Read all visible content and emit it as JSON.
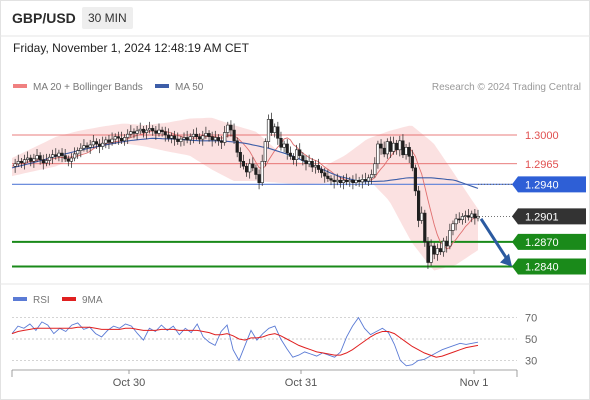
{
  "header": {
    "pair": "GBP/USD",
    "timeframe": "30 MIN"
  },
  "datetime": "Friday, November 1, 2024 12:48:19 AM CET",
  "copyright": "Research © 2024 Trading Central",
  "colors": {
    "bb_band": "#f7c9c9",
    "ma20": "#e07070",
    "ma50": "#3d5ea8",
    "resistance": "#e05050",
    "pivot_box": "#2e5fd6",
    "support": "#1a8a1a",
    "price_box": "#333333",
    "arrow": "#2b5aa0",
    "candle": "#1f1f1f",
    "rsi": "#5b7bd5",
    "rsi_ma": "#e02020"
  },
  "chart_data": [
    {
      "type": "candlestick",
      "title": "GBP/USD",
      "legend": [
        {
          "name": "MA 20 + Bollinger Bands",
          "color": "#f08080"
        },
        {
          "name": "MA 50",
          "color": "#3d5ea8"
        }
      ],
      "x_ticks": [
        "Oct 30",
        "Oct 31",
        "Nov 1"
      ],
      "ylim": [
        1.282,
        1.3045
      ],
      "levels": [
        {
          "value": 1.3,
          "label": "1.3000",
          "kind": "resistance"
        },
        {
          "value": 1.2965,
          "label": "1.2965",
          "kind": "resistance"
        },
        {
          "value": 1.294,
          "label": "1.2940",
          "kind": "pivot"
        },
        {
          "value": 1.2901,
          "label": "1.2901",
          "kind": "last_price"
        },
        {
          "value": 1.287,
          "label": "1.2870",
          "kind": "support"
        },
        {
          "value": 1.284,
          "label": "1.2840",
          "kind": "support"
        }
      ],
      "projection": {
        "from": 1.2898,
        "to": 1.284,
        "direction": "down"
      },
      "series_close": [
        1.2962,
        1.2965,
        1.2968,
        1.2966,
        1.297,
        1.2972,
        1.2968,
        1.2971,
        1.2975,
        1.297,
        1.2966,
        1.2969,
        1.2973,
        1.2976,
        1.2974,
        1.2978,
        1.2975,
        1.2971,
        1.2968,
        1.2972,
        1.2977,
        1.2981,
        1.2984,
        1.2987,
        1.2985,
        1.2988,
        1.2992,
        1.2989,
        1.2986,
        1.299,
        1.2994,
        1.2991,
        1.2995,
        1.2998,
        1.2996,
        1.2993,
        1.2997,
        1.3001,
        1.3004,
        1.3002,
        1.3005,
        1.3007,
        1.3003,
        1.3006,
        1.3008,
        1.3005,
        1.3002,
        1.3006,
        1.3004,
        1.3,
        1.2996,
        1.2999,
        1.2995,
        1.2992,
        1.2995,
        1.2997,
        1.2994,
        1.2998,
        1.3001,
        1.2998,
        1.2995,
        1.2999,
        1.3002,
        1.2998,
        1.2994,
        1.2997,
        1.2993,
        1.2991,
        1.3003,
        1.3012,
        1.3006,
        1.2993,
        1.2979,
        1.2968,
        1.2962,
        1.2955,
        1.2965,
        1.296,
        1.2952,
        1.2942,
        1.2968,
        1.2992,
        1.3019,
        1.3003,
        1.301,
        1.2996,
        1.2985,
        1.2989,
        1.2978,
        1.2974,
        1.297,
        1.2982,
        1.2975,
        1.2969,
        1.2965,
        1.2968,
        1.2961,
        1.2963,
        1.2958,
        1.2954,
        1.295,
        1.2947,
        1.2945,
        1.2943,
        1.2945,
        1.2942,
        1.2945,
        1.2943,
        1.2945,
        1.2942,
        1.2945,
        1.2943,
        1.2946,
        1.2944,
        1.2948,
        1.2952,
        1.2965,
        1.2989,
        1.2984,
        1.2977,
        1.2992,
        1.298,
        1.299,
        1.2982,
        1.2993,
        1.2976,
        1.2985,
        1.2974,
        1.296,
        1.2932,
        1.2896,
        1.2905,
        1.287,
        1.2845,
        1.2865,
        1.2855,
        1.2862,
        1.2858,
        1.2871,
        1.2865,
        1.2884,
        1.2892,
        1.2898,
        1.2897,
        1.2901,
        1.2902,
        1.29,
        1.2904,
        1.2899,
        1.2901
      ],
      "ma50_anchor": [
        1.296,
        1.2967,
        1.2975,
        1.2982,
        1.2988,
        1.2993,
        1.2996,
        1.2995,
        1.2993,
        1.2993,
        1.299,
        1.2984,
        1.2975,
        1.2962,
        1.295,
        1.2943,
        1.2944,
        1.2948,
        1.2948,
        1.2945,
        1.2935
      ],
      "bb_upper_anchor": [
        1.2972,
        1.2985,
        1.2998,
        1.3005,
        1.301,
        1.3014,
        1.3012,
        1.3015,
        1.302,
        1.3021,
        1.3012,
        1.3004,
        1.298,
        1.2966,
        1.2961,
        1.2975,
        1.2995,
        1.3005,
        1.3012,
        1.299,
        1.295,
        1.291
      ],
      "bb_lower_anchor": [
        1.295,
        1.2956,
        1.2962,
        1.2975,
        1.2986,
        1.299,
        1.2986,
        1.298,
        1.2975,
        1.2958,
        1.2944,
        1.2944,
        1.2942,
        1.294,
        1.2941,
        1.2945,
        1.2948,
        1.292,
        1.287,
        1.2835,
        1.2842,
        1.286
      ]
    },
    {
      "type": "line",
      "title": "RSI",
      "legend": [
        {
          "name": "RSI",
          "color": "#5b7bd5"
        },
        {
          "name": "9MA",
          "color": "#e02020"
        }
      ],
      "ylim": [
        22,
        78
      ],
      "levels": [
        {
          "value": 70,
          "label": "70"
        },
        {
          "value": 50,
          "label": "50"
        },
        {
          "value": 30,
          "label": "30"
        }
      ],
      "rsi": [
        55,
        62,
        60,
        64,
        58,
        66,
        63,
        55,
        60,
        57,
        63,
        65,
        59,
        61,
        55,
        52,
        58,
        62,
        60,
        64,
        62,
        55,
        49,
        60,
        57,
        63,
        58,
        62,
        54,
        60,
        56,
        64,
        52,
        47,
        44,
        57,
        63,
        40,
        30,
        44,
        58,
        49,
        55,
        60,
        62,
        50,
        41,
        33,
        35,
        38,
        36,
        34,
        37,
        35,
        33,
        38,
        52,
        62,
        70,
        60,
        54,
        57,
        60,
        56,
        45,
        30,
        25,
        26,
        30,
        31,
        34,
        37,
        40,
        42,
        44,
        46,
        45,
        46,
        47
      ],
      "rsi_ma": [
        55,
        57,
        58,
        59,
        60,
        60,
        60,
        60,
        60,
        60,
        60,
        61,
        61,
        61,
        60,
        59,
        59,
        59,
        59,
        60,
        60,
        59,
        58,
        58,
        58,
        59,
        59,
        59,
        58,
        58,
        58,
        58,
        57,
        56,
        54,
        54,
        55,
        53,
        50,
        49,
        51,
        51,
        52,
        54,
        55,
        53,
        50,
        47,
        44,
        42,
        40,
        38,
        37,
        36,
        35,
        35,
        37,
        40,
        44,
        48,
        52,
        55,
        57,
        57,
        55,
        51,
        47,
        43,
        40,
        37,
        35,
        33,
        34,
        36,
        38,
        40,
        42,
        43,
        44
      ]
    }
  ]
}
